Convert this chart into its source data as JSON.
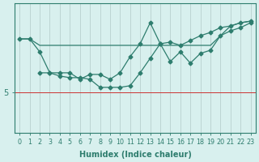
{
  "xlabel": "Humidex (Indice chaleur)",
  "bg_color": "#d8f0ee",
  "line_color": "#2e7d6e",
  "grid_color": "#b8d0ce",
  "axis_color": "#2e7d6e",
  "red_line_color": "#cc3333",
  "ytick_val": 5,
  "xlim": [
    -0.5,
    23.5
  ],
  "ylim": [
    2.5,
    10.5
  ],
  "hline_y": 5,
  "line1_x": [
    0,
    1,
    2,
    3,
    4,
    12,
    13,
    14,
    15,
    16,
    17,
    18,
    19,
    20,
    21,
    22,
    23
  ],
  "line1_y": [
    8.3,
    8.3,
    7.9,
    7.9,
    7.9,
    7.9,
    7.9,
    7.9,
    7.9,
    7.9,
    7.9,
    7.9,
    7.9,
    8.5,
    9.1,
    9.3,
    9.4
  ],
  "line2_x": [
    0,
    1,
    2,
    3,
    4,
    5,
    6,
    7,
    8,
    9,
    10,
    11,
    12,
    13,
    14,
    15,
    16,
    17,
    18,
    19,
    20,
    21,
    22,
    23
  ],
  "line2_y": [
    8.3,
    8.3,
    7.5,
    6.2,
    6.2,
    6.2,
    5.8,
    6.1,
    6.1,
    5.8,
    6.2,
    7.2,
    8.0,
    9.3,
    8.0,
    8.1,
    7.9,
    8.2,
    8.5,
    8.7,
    9.0,
    9.1,
    9.3,
    9.4
  ],
  "line3_x": [
    2,
    3,
    4,
    5,
    6,
    7,
    8,
    9,
    10,
    11,
    12,
    13,
    14,
    15,
    16,
    17,
    18,
    19,
    20,
    21,
    22,
    23
  ],
  "line3_y": [
    6.2,
    6.2,
    6.0,
    5.9,
    5.9,
    5.8,
    5.3,
    5.3,
    5.3,
    5.4,
    6.2,
    7.1,
    8.0,
    6.9,
    7.5,
    6.8,
    7.4,
    7.6,
    8.5,
    8.8,
    9.0,
    9.3
  ],
  "font_size": 7.0,
  "marker_size": 2.5,
  "linewidth": 0.9
}
